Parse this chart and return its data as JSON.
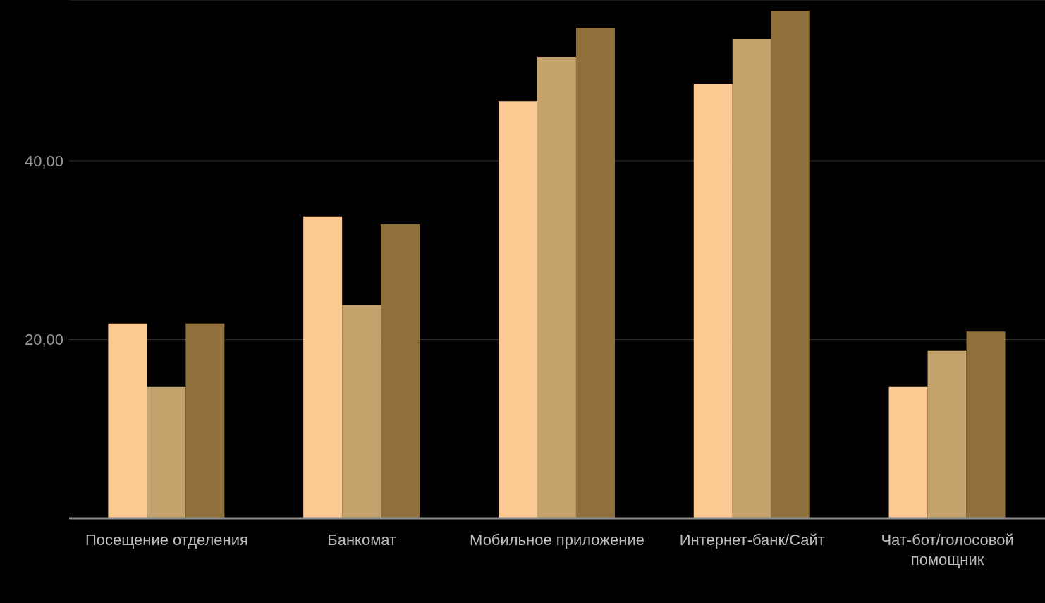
{
  "chart_data": {
    "type": "bar",
    "categories": [
      "Посещение отделения",
      "Банкомат",
      "Мобильное приложение",
      "Интернет-банк/Сайт",
      "Чат-бот/голосовой помощник"
    ],
    "series": [
      {
        "color": "#fdc993",
        "values": [
          21.8,
          33.8,
          46.7,
          48.6,
          14.7
        ]
      },
      {
        "color": "#c4a26c",
        "values": [
          14.7,
          23.9,
          51.6,
          53.6,
          18.8
        ]
      },
      {
        "color": "#8f703a",
        "values": [
          21.8,
          32.9,
          54.9,
          56.8,
          20.9
        ]
      }
    ],
    "ylim": [
      0,
      58
    ],
    "yticks": [
      {
        "value": 20,
        "label": "20,00"
      },
      {
        "value": 40,
        "label": "40,00"
      }
    ],
    "grid": "y",
    "legend": false
  }
}
